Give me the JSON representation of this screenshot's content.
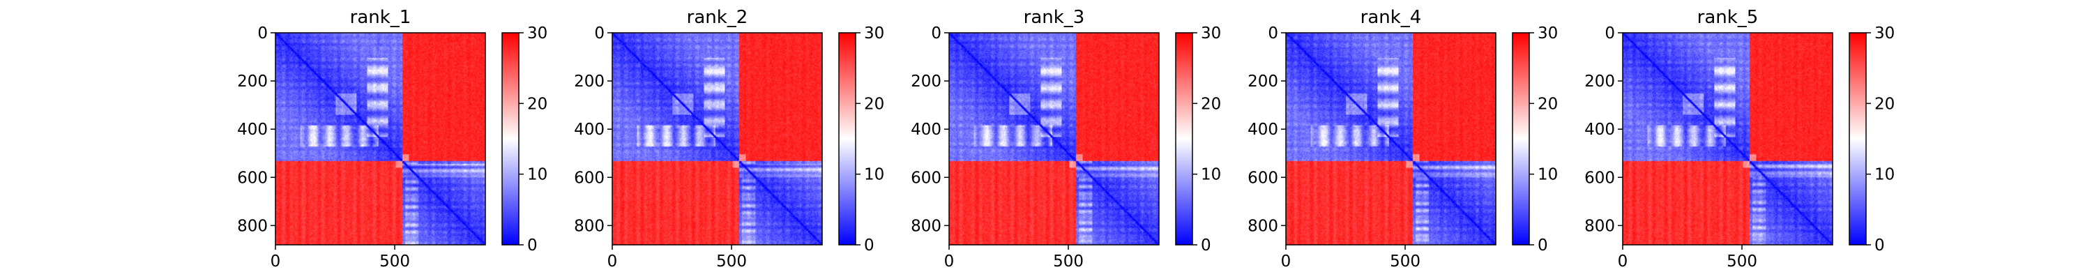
{
  "figure": {
    "panel_count": 5
  },
  "colors": {
    "low": "#0000ff",
    "mid": "#ffffff",
    "high": "#ff0000",
    "axis": "#000000"
  },
  "chart_data": [
    {
      "type": "heatmap",
      "title": "rank_1",
      "colormap": "bwr",
      "color_range": [
        0,
        30
      ],
      "colorbar_ticks": [
        "0",
        "10",
        "20",
        "30"
      ],
      "x_ticks": [
        "0",
        "500"
      ],
      "y_ticks": [
        "0",
        "200",
        "400",
        "600",
        "800"
      ],
      "matrix_size": 880,
      "domain_boundary": 530,
      "blocks": {
        "within_domain_1": "low (~0-8)",
        "within_domain_2": "low (~0-8)",
        "between_domains": "high (~28-30)"
      }
    },
    {
      "type": "heatmap",
      "title": "rank_2",
      "colormap": "bwr",
      "color_range": [
        0,
        30
      ],
      "colorbar_ticks": [
        "0",
        "10",
        "20",
        "30"
      ],
      "x_ticks": [
        "0",
        "500"
      ],
      "y_ticks": [
        "0",
        "200",
        "400",
        "600",
        "800"
      ],
      "matrix_size": 880,
      "domain_boundary": 530,
      "blocks": {
        "within_domain_1": "low (~0-8)",
        "within_domain_2": "low (~0-8)",
        "between_domains": "high (~28-30)"
      }
    },
    {
      "type": "heatmap",
      "title": "rank_3",
      "colormap": "bwr",
      "color_range": [
        0,
        30
      ],
      "colorbar_ticks": [
        "0",
        "10",
        "20",
        "30"
      ],
      "x_ticks": [
        "0",
        "500"
      ],
      "y_ticks": [
        "0",
        "200",
        "400",
        "600",
        "800"
      ],
      "matrix_size": 880,
      "domain_boundary": 530,
      "blocks": {
        "within_domain_1": "low (~0-8)",
        "within_domain_2": "low (~0-8)",
        "between_domains": "high (~28-30)"
      }
    },
    {
      "type": "heatmap",
      "title": "rank_4",
      "colormap": "bwr",
      "color_range": [
        0,
        30
      ],
      "colorbar_ticks": [
        "0",
        "10",
        "20",
        "30"
      ],
      "x_ticks": [
        "0",
        "500"
      ],
      "y_ticks": [
        "0",
        "200",
        "400",
        "600",
        "800"
      ],
      "matrix_size": 880,
      "domain_boundary": 530,
      "blocks": {
        "within_domain_1": "low (~0-8)",
        "within_domain_2": "low (~0-8)",
        "between_domains": "high (~28-30)"
      }
    },
    {
      "type": "heatmap",
      "title": "rank_5",
      "colormap": "bwr",
      "color_range": [
        0,
        30
      ],
      "colorbar_ticks": [
        "0",
        "10",
        "20",
        "30"
      ],
      "x_ticks": [
        "0",
        "500"
      ],
      "y_ticks": [
        "0",
        "200",
        "400",
        "600",
        "800"
      ],
      "matrix_size": 880,
      "domain_boundary": 530,
      "blocks": {
        "within_domain_1": "low (~0-8)",
        "within_domain_2": "low (~0-8)",
        "between_domains": "high (~28-30)"
      }
    }
  ]
}
